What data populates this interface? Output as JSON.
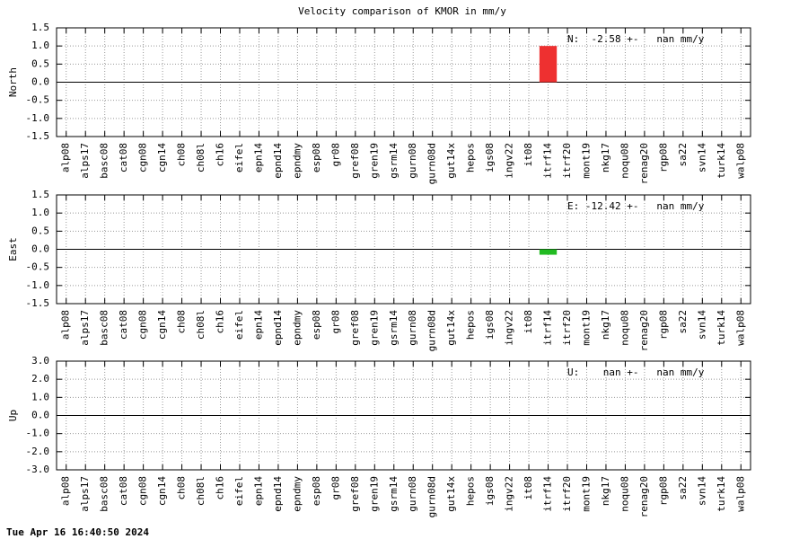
{
  "title": "Velocity comparison of KMOR in mm/y",
  "footer": "Tue Apr 16 16:40:50 2024",
  "chart_data": [
    {
      "type": "bar",
      "ylabel": "North",
      "annotation": "N:  -2.58 +-   nan mm/y",
      "color": "#ee3030",
      "grid": true,
      "categories": [
        "alp08",
        "alps17",
        "basc08",
        "cat08",
        "cgn08",
        "cgn14",
        "ch08",
        "ch08l",
        "ch16",
        "eifel",
        "epn14",
        "epnd14",
        "epndmy",
        "esp08",
        "gr08",
        "gref08",
        "gren19",
        "gsrm14",
        "gurn08",
        "gurn08d",
        "gut14x",
        "hepos",
        "igs08",
        "ingv22",
        "it08",
        "itrf14",
        "itrf20",
        "mont19",
        "nkg17",
        "noqu08",
        "renag20",
        "rgp08",
        "sa22",
        "svn14",
        "turk14",
        "walp08"
      ],
      "values": [
        null,
        null,
        null,
        null,
        null,
        null,
        null,
        null,
        null,
        null,
        null,
        null,
        null,
        null,
        null,
        null,
        null,
        null,
        null,
        null,
        null,
        null,
        null,
        null,
        null,
        1.0,
        null,
        null,
        null,
        null,
        null,
        null,
        null,
        null,
        null,
        null
      ],
      "ylim": [
        -1.5,
        1.5
      ],
      "yticks": [
        -1.5,
        {
          "value": -1,
          "label": "-1.0"
        },
        -0.5,
        {
          "value": 0,
          "label": "0.0"
        },
        0.5,
        {
          "value": 1,
          "label": "1.0"
        },
        1.5
      ]
    },
    {
      "type": "bar",
      "ylabel": "East",
      "annotation": "E: -12.42 +-   nan mm/y",
      "color": "#22bb22",
      "grid": true,
      "categories": [
        "alp08",
        "alps17",
        "basc08",
        "cat08",
        "cgn08",
        "cgn14",
        "ch08",
        "ch08l",
        "ch16",
        "eifel",
        "epn14",
        "epnd14",
        "epndmy",
        "esp08",
        "gr08",
        "gref08",
        "gren19",
        "gsrm14",
        "gurn08",
        "gurn08d",
        "gut14x",
        "hepos",
        "igs08",
        "ingv22",
        "it08",
        "itrf14",
        "itrf20",
        "mont19",
        "nkg17",
        "noqu08",
        "renag20",
        "rgp08",
        "sa22",
        "svn14",
        "turk14",
        "walp08"
      ],
      "values": [
        null,
        null,
        null,
        null,
        null,
        null,
        null,
        null,
        null,
        null,
        null,
        null,
        null,
        null,
        null,
        null,
        null,
        null,
        null,
        null,
        null,
        null,
        null,
        null,
        null,
        -0.15,
        null,
        null,
        null,
        null,
        null,
        null,
        null,
        null,
        null,
        null
      ],
      "ylim": [
        -1.5,
        1.5
      ],
      "yticks": [
        -1.5,
        {
          "value": -1,
          "label": "-1.0"
        },
        -0.5,
        {
          "value": 0,
          "label": "0.0"
        },
        0.5,
        {
          "value": 1,
          "label": "1.0"
        },
        1.5
      ]
    },
    {
      "type": "bar",
      "ylabel": "Up",
      "annotation": "U:    nan +-   nan mm/y",
      "grid": true,
      "categories": [
        "alp08",
        "alps17",
        "basc08",
        "cat08",
        "cgn08",
        "cgn14",
        "ch08",
        "ch08l",
        "ch16",
        "eifel",
        "epn14",
        "epnd14",
        "epndmy",
        "esp08",
        "gr08",
        "gref08",
        "gren19",
        "gsrm14",
        "gurn08",
        "gurn08d",
        "gut14x",
        "hepos",
        "igs08",
        "ingv22",
        "it08",
        "itrf14",
        "itrf20",
        "mont19",
        "nkg17",
        "noqu08",
        "renag20",
        "rgp08",
        "sa22",
        "svn14",
        "turk14",
        "walp08"
      ],
      "values": [
        null,
        null,
        null,
        null,
        null,
        null,
        null,
        null,
        null,
        null,
        null,
        null,
        null,
        null,
        null,
        null,
        null,
        null,
        null,
        null,
        null,
        null,
        null,
        null,
        null,
        null,
        null,
        null,
        null,
        null,
        null,
        null,
        null,
        null,
        null,
        null
      ],
      "ylim": [
        -3,
        3
      ],
      "yticks": [
        {
          "value": -3,
          "label": "-3.0"
        },
        {
          "value": -2,
          "label": "-2.0"
        },
        {
          "value": -1,
          "label": "-1.0"
        },
        {
          "value": 0,
          "label": "0.0"
        },
        {
          "value": 1,
          "label": "1.0"
        },
        {
          "value": 2,
          "label": "2.0"
        },
        {
          "value": 3,
          "label": "3.0"
        }
      ]
    }
  ]
}
